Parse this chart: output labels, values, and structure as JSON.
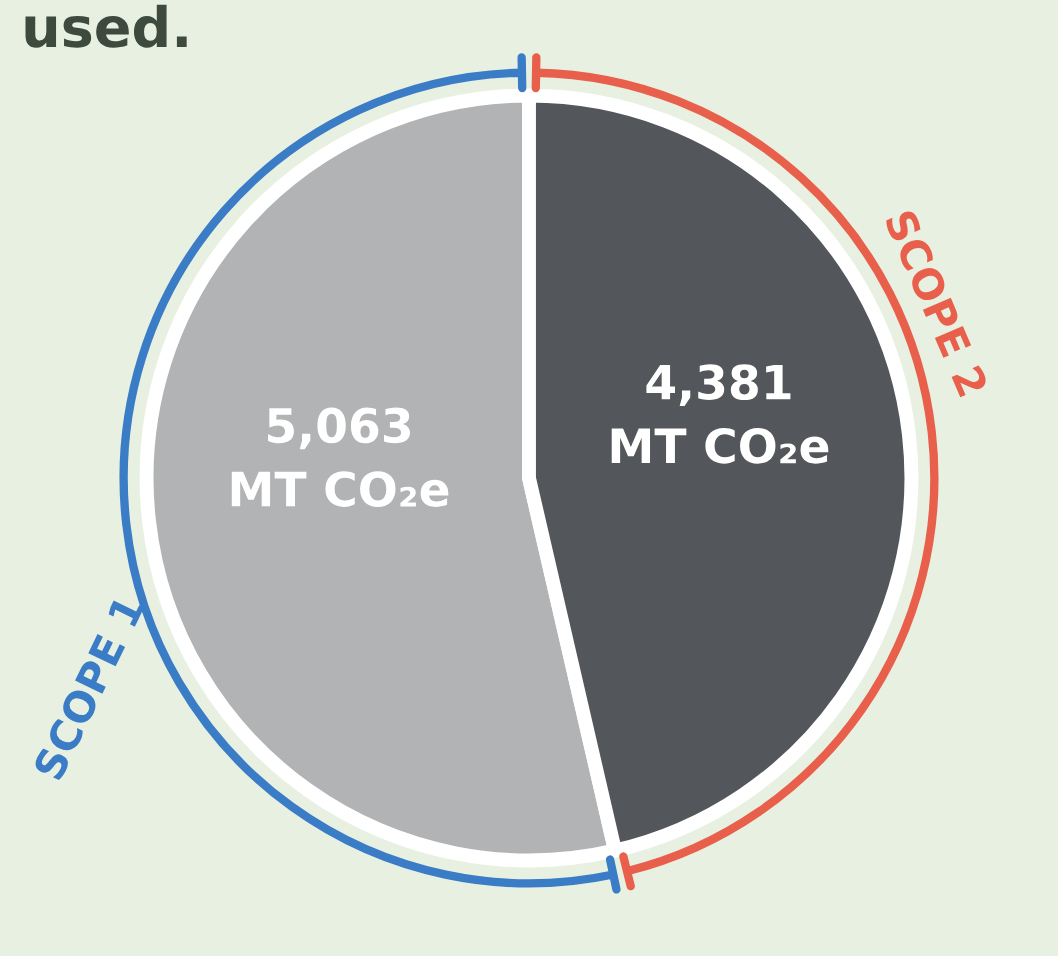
{
  "chart_data": {
    "type": "pie",
    "categories": [
      "SCOPE 1",
      "SCOPE 2"
    ],
    "values": [
      5063,
      4381
    ],
    "colors": [
      "#b1b3b4",
      "#53565a"
    ],
    "value_labels": [
      "5,063\nMT CO₂e",
      "4,381\nMT CO₂e"
    ],
    "annotations": [
      "used."
    ],
    "legend": false
  }
}
